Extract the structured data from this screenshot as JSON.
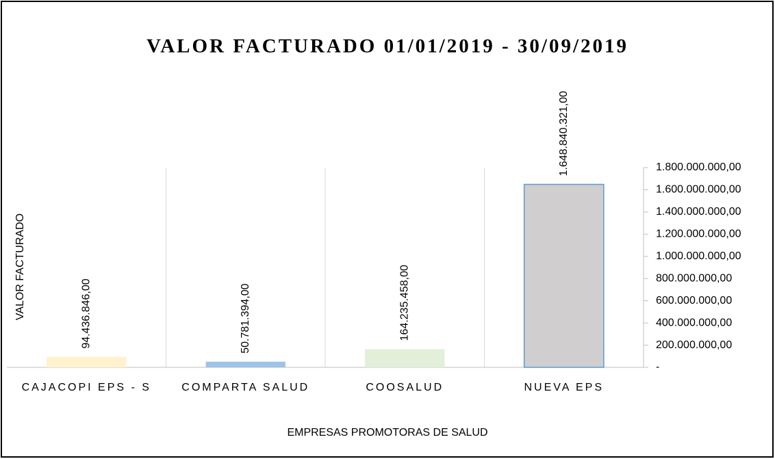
{
  "chart_data": {
    "type": "bar",
    "title": "VALOR FACTURADO 01/01/2019 - 30/09/2019",
    "x_label": "EMPRESAS PROMOTORAS DE SALUD",
    "y_label": "VALOR FACTURADO",
    "categories": [
      "CAJACOPI EPS - S",
      "COMPARTA SALUD",
      "COOSALUD",
      "NUEVA EPS"
    ],
    "values": [
      94436846,
      50781394,
      164235458,
      1648840321
    ],
    "value_labels": [
      "94.436.846,00",
      "50.781.394,00",
      "164.235.458,00",
      "1.648.840.321,00"
    ],
    "colors": [
      "#fff2cc",
      "#9dc3e6",
      "#e2efd9",
      "#d0cece"
    ],
    "ylim": [
      0,
      1800000000
    ],
    "yticks": [
      {
        "value": 0,
        "label": "-"
      },
      {
        "value": 200000000,
        "label": "200.000.000,00"
      },
      {
        "value": 400000000,
        "label": "400.000.000,00"
      },
      {
        "value": 600000000,
        "label": "600.000.000,00"
      },
      {
        "value": 800000000,
        "label": "800.000.000,00"
      },
      {
        "value": 1000000000,
        "label": "1.000.000.000,00"
      },
      {
        "value": 1200000000,
        "label": "1.200.000.000,00"
      },
      {
        "value": 1400000000,
        "label": "1.400.000.000,00"
      },
      {
        "value": 1600000000,
        "label": "1.600.000.000,00"
      },
      {
        "value": 1800000000,
        "label": "1.800.000.000,00"
      }
    ],
    "y_axis_side": "right",
    "grid": true
  }
}
